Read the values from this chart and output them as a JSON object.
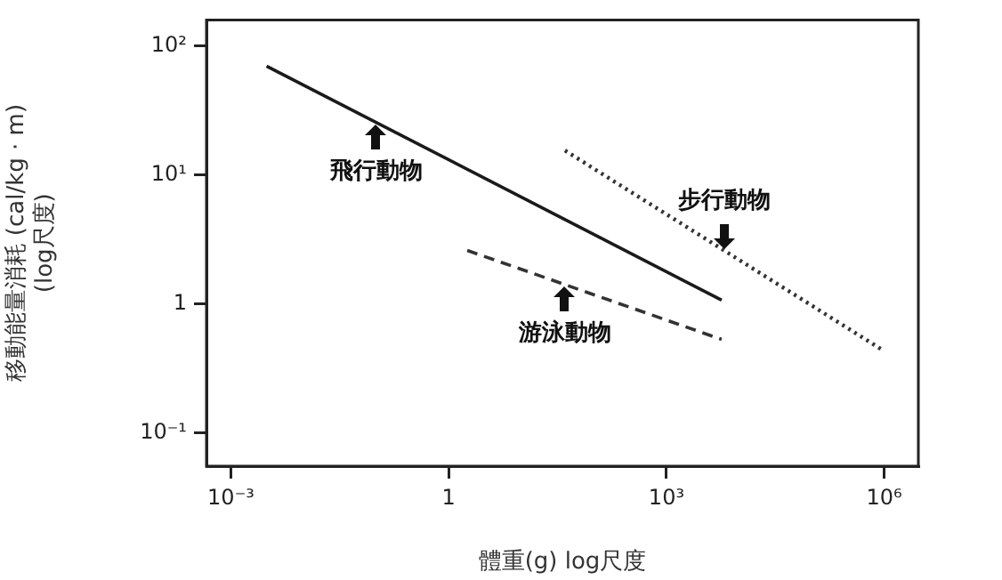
{
  "chart_data": {
    "type": "line",
    "xlabel": "體重(g) log尺度",
    "ylabel": "移動能量消耗 (cal/kg · m)\n(log尺度)",
    "log": "xy",
    "grid": false,
    "legend": false,
    "marker": "none",
    "xlim": [
      0.00046,
      2950000
    ],
    "ylim": [
      0.055,
      160
    ],
    "xticks": [
      {
        "value": 0.001,
        "label": "10⁻³"
      },
      1,
      {
        "value": 1000,
        "label": "10³"
      },
      {
        "value": 1000000,
        "label": "10⁶"
      }
    ],
    "yticks": [
      {
        "value": 0.1,
        "label": "10⁻¹"
      },
      1,
      {
        "value": 10,
        "label": "10¹"
      },
      {
        "value": 100,
        "label": "10²"
      }
    ],
    "series": [
      {
        "color": "#1a1a1a",
        "line_style": "solid",
        "x": [
          0.0031,
          5750
        ],
        "values": [
          70,
          1.07
        ]
      },
      {
        "color": "#333333",
        "line_style": "dashed",
        "x": [
          1.8,
          5750
        ],
        "values": [
          2.6,
          0.53
        ]
      },
      {
        "color": "#333333",
        "line_style": "dotted",
        "x": [
          40,
          1000000
        ],
        "values": [
          15.5,
          0.43
        ]
      }
    ],
    "annotations": [
      {
        "text": "飛行動物",
        "x": 0.1,
        "y": 25.6
      },
      {
        "text": "游泳動物",
        "x": 40,
        "y": 1.43
      },
      {
        "text": "步行動物",
        "x": 6300,
        "y": 2.57
      }
    ]
  }
}
